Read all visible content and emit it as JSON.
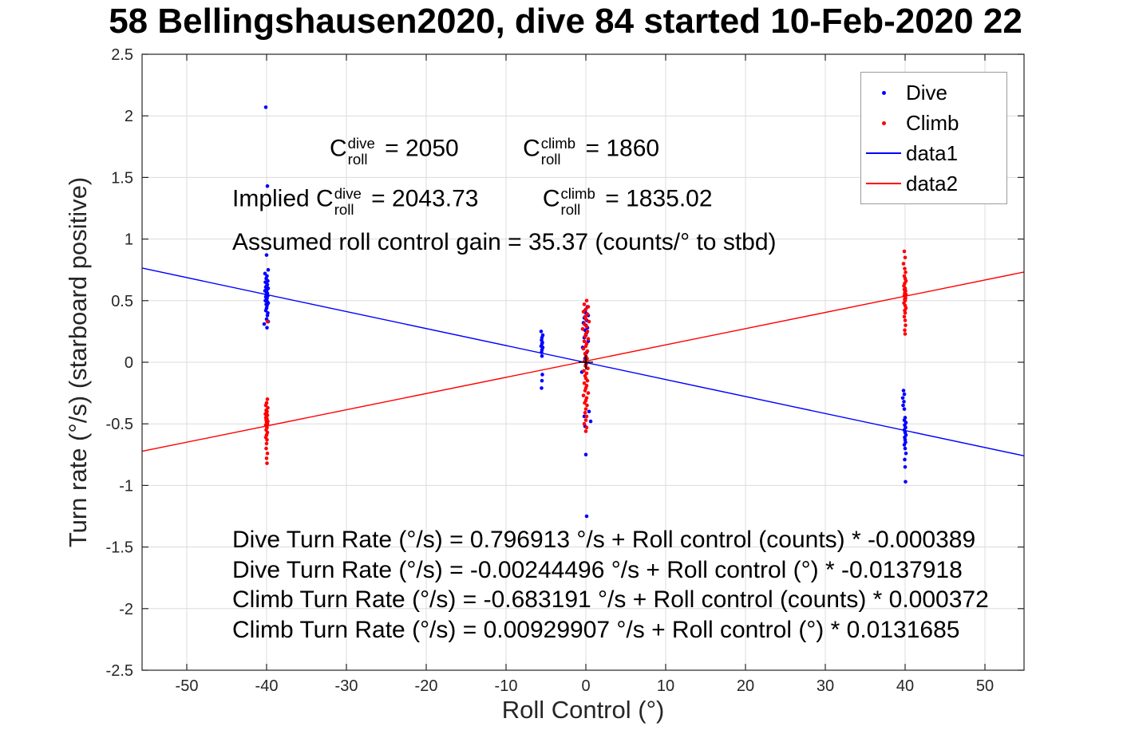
{
  "figure": {
    "background": "#ffffff"
  },
  "chart_data": {
    "type": "scatter",
    "title": "58 Bellingshausen2020, dive 84 started 10-Feb-2020 22",
    "xlabel": "Roll Control (°)",
    "ylabel": "Turn rate (°/s) (starboard positive)",
    "xlim": [
      -55.6,
      54.9
    ],
    "ylim": [
      -2.5,
      2.5
    ],
    "grid": true,
    "legend_position": "top-right",
    "axis_color": "#262626",
    "grid_color": "#dcdcdc",
    "xtick_values": [
      -50,
      -40,
      -30,
      -20,
      -10,
      0,
      10,
      20,
      30,
      40,
      50
    ],
    "xtick_labels": [
      "-50",
      "-40",
      "-30",
      "-20",
      "-10",
      "0",
      "10",
      "20",
      "30",
      "40",
      "50"
    ],
    "ytick_values": [
      -2.5,
      -2,
      -1.5,
      -1,
      -0.5,
      0,
      0.5,
      1,
      1.5,
      2,
      2.5
    ],
    "ytick_labels": [
      "-2.5",
      "-2",
      "-1.5",
      "-1",
      "-0.5",
      "0",
      "0.5",
      "1",
      "1.5",
      "2",
      "2.5"
    ],
    "origin_marker": {
      "x": 0,
      "y": 0,
      "color": "#000000"
    },
    "series": [
      {
        "name": "Dive",
        "type": "scatter",
        "color": "#0000ff",
        "points": [
          [
            -40.1,
            2.07
          ],
          [
            -39.9,
            1.43
          ],
          [
            -40.0,
            0.87
          ],
          [
            -39.8,
            0.75
          ],
          [
            -40.2,
            0.72
          ],
          [
            -39.95,
            0.7
          ],
          [
            -40.05,
            0.68
          ],
          [
            -39.85,
            0.66
          ],
          [
            -40.15,
            0.65
          ],
          [
            -39.9,
            0.63
          ],
          [
            -40.0,
            0.62
          ],
          [
            -40.1,
            0.61
          ],
          [
            -39.8,
            0.6
          ],
          [
            -39.95,
            0.59
          ],
          [
            -40.2,
            0.58
          ],
          [
            -40.0,
            0.57
          ],
          [
            -39.9,
            0.56
          ],
          [
            -40.05,
            0.55
          ],
          [
            -39.85,
            0.54
          ],
          [
            -40.1,
            0.53
          ],
          [
            -39.95,
            0.52
          ],
          [
            -40.0,
            0.51
          ],
          [
            -40.15,
            0.5
          ],
          [
            -39.9,
            0.49
          ],
          [
            -39.8,
            0.48
          ],
          [
            -40.05,
            0.47
          ],
          [
            -39.95,
            0.46
          ],
          [
            -40.0,
            0.44
          ],
          [
            -40.1,
            0.42
          ],
          [
            -39.85,
            0.4
          ],
          [
            -39.9,
            0.38
          ],
          [
            -40.0,
            0.35
          ],
          [
            -39.8,
            0.33
          ],
          [
            -40.3,
            0.31
          ],
          [
            -39.95,
            0.28
          ],
          [
            -5.6,
            0.25
          ],
          [
            -5.4,
            0.22
          ],
          [
            -5.5,
            0.2
          ],
          [
            -5.55,
            0.18
          ],
          [
            -5.45,
            0.16
          ],
          [
            -5.5,
            0.15
          ],
          [
            -5.6,
            0.13
          ],
          [
            -5.4,
            0.12
          ],
          [
            -5.5,
            0.1
          ],
          [
            -5.55,
            0.08
          ],
          [
            -5.5,
            0.05
          ],
          [
            -5.45,
            -0.1
          ],
          [
            -5.5,
            -0.15
          ],
          [
            -5.55,
            -0.21
          ],
          [
            0.2,
            0.45
          ],
          [
            -0.1,
            0.42
          ],
          [
            0.0,
            0.4
          ],
          [
            0.3,
            0.38
          ],
          [
            -0.2,
            0.36
          ],
          [
            0.1,
            0.34
          ],
          [
            -0.3,
            0.32
          ],
          [
            0.0,
            0.3
          ],
          [
            0.2,
            0.28
          ],
          [
            -0.1,
            0.26
          ],
          [
            0.1,
            0.24
          ],
          [
            0.0,
            0.22
          ],
          [
            -0.2,
            0.2
          ],
          [
            0.3,
            0.17
          ],
          [
            -0.4,
            0.12
          ],
          [
            0.1,
            0.08
          ],
          [
            -0.1,
            0.03
          ],
          [
            0.0,
            -0.02
          ],
          [
            -0.5,
            -0.08
          ],
          [
            0.4,
            -0.4
          ],
          [
            -0.2,
            -0.44
          ],
          [
            0.6,
            -0.48
          ],
          [
            -0.1,
            -0.52
          ],
          [
            0.0,
            -0.75
          ],
          [
            0.1,
            -1.25
          ],
          [
            39.8,
            -0.23
          ],
          [
            39.9,
            -0.26
          ],
          [
            39.7,
            -0.29
          ],
          [
            39.85,
            -0.32
          ],
          [
            39.75,
            -0.35
          ],
          [
            39.9,
            -0.38
          ],
          [
            40.0,
            -0.45
          ],
          [
            39.9,
            -0.47
          ],
          [
            40.1,
            -0.49
          ],
          [
            39.95,
            -0.51
          ],
          [
            40.05,
            -0.53
          ],
          [
            39.9,
            -0.55
          ],
          [
            40.0,
            -0.57
          ],
          [
            40.1,
            -0.59
          ],
          [
            39.95,
            -0.61
          ],
          [
            40.0,
            -0.63
          ],
          [
            40.05,
            -0.65
          ],
          [
            39.9,
            -0.67
          ],
          [
            40.0,
            -0.7
          ],
          [
            40.1,
            -0.74
          ],
          [
            39.95,
            -0.79
          ],
          [
            40.0,
            -0.85
          ],
          [
            40.05,
            -0.97
          ]
        ]
      },
      {
        "name": "Climb",
        "type": "scatter",
        "color": "#ff0000",
        "points": [
          [
            -39.9,
            0.33
          ],
          [
            -39.9,
            -0.3
          ],
          [
            -40.0,
            -0.33
          ],
          [
            -40.1,
            -0.35
          ],
          [
            -39.85,
            -0.37
          ],
          [
            -40.05,
            -0.39
          ],
          [
            -39.95,
            -0.4
          ],
          [
            -40.0,
            -0.41
          ],
          [
            -40.15,
            -0.42
          ],
          [
            -39.9,
            -0.43
          ],
          [
            -40.0,
            -0.44
          ],
          [
            -40.1,
            -0.45
          ],
          [
            -39.95,
            -0.46
          ],
          [
            -40.05,
            -0.47
          ],
          [
            -39.85,
            -0.48
          ],
          [
            -40.0,
            -0.49
          ],
          [
            -39.9,
            -0.5
          ],
          [
            -40.1,
            -0.51
          ],
          [
            -40.0,
            -0.52
          ],
          [
            -39.95,
            -0.53
          ],
          [
            -40.05,
            -0.55
          ],
          [
            -39.9,
            -0.57
          ],
          [
            -40.0,
            -0.59
          ],
          [
            -40.1,
            -0.61
          ],
          [
            -39.95,
            -0.63
          ],
          [
            -40.0,
            -0.66
          ],
          [
            -40.05,
            -0.7
          ],
          [
            -39.9,
            -0.74
          ],
          [
            -40.0,
            -0.78
          ],
          [
            -39.95,
            -0.82
          ],
          [
            0.1,
            0.5
          ],
          [
            -0.2,
            0.47
          ],
          [
            0.3,
            0.45
          ],
          [
            0.0,
            0.43
          ],
          [
            -0.3,
            0.41
          ],
          [
            0.2,
            0.39
          ],
          [
            -0.1,
            0.37
          ],
          [
            0.0,
            0.35
          ],
          [
            0.4,
            0.33
          ],
          [
            -0.2,
            0.31
          ],
          [
            0.1,
            0.29
          ],
          [
            -0.4,
            0.27
          ],
          [
            0.2,
            0.25
          ],
          [
            0.0,
            0.23
          ],
          [
            -0.1,
            0.21
          ],
          [
            0.3,
            0.19
          ],
          [
            -0.2,
            0.17
          ],
          [
            0.1,
            0.15
          ],
          [
            0.0,
            0.13
          ],
          [
            -0.3,
            0.11
          ],
          [
            0.2,
            0.09
          ],
          [
            -0.1,
            0.07
          ],
          [
            0.0,
            0.05
          ],
          [
            0.15,
            0.03
          ],
          [
            -0.15,
            0.01
          ],
          [
            0.05,
            -0.01
          ],
          [
            -0.05,
            -0.03
          ],
          [
            0.25,
            -0.05
          ],
          [
            -0.25,
            -0.07
          ],
          [
            0.1,
            -0.09
          ],
          [
            -0.1,
            -0.11
          ],
          [
            0.0,
            -0.13
          ],
          [
            0.2,
            -0.15
          ],
          [
            -0.2,
            -0.17
          ],
          [
            0.1,
            -0.19
          ],
          [
            0.0,
            -0.21
          ],
          [
            -0.1,
            -0.23
          ],
          [
            0.3,
            -0.25
          ],
          [
            -0.3,
            -0.27
          ],
          [
            0.1,
            -0.29
          ],
          [
            0.0,
            -0.31
          ],
          [
            -0.15,
            -0.33
          ],
          [
            0.15,
            -0.35
          ],
          [
            0.0,
            -0.38
          ],
          [
            -0.1,
            -0.41
          ],
          [
            0.1,
            -0.44
          ],
          [
            0.0,
            -0.47
          ],
          [
            -0.2,
            -0.5
          ],
          [
            0.1,
            -0.53
          ],
          [
            0.0,
            -0.56
          ],
          [
            39.9,
            0.9
          ],
          [
            40.0,
            0.85
          ],
          [
            39.8,
            0.8
          ],
          [
            39.95,
            0.76
          ],
          [
            40.05,
            0.73
          ],
          [
            39.9,
            0.7
          ],
          [
            40.0,
            0.68
          ],
          [
            40.1,
            0.66
          ],
          [
            39.95,
            0.64
          ],
          [
            39.85,
            0.62
          ],
          [
            40.0,
            0.6
          ],
          [
            39.9,
            0.59
          ],
          [
            40.05,
            0.58
          ],
          [
            40.0,
            0.57
          ],
          [
            39.95,
            0.56
          ],
          [
            40.1,
            0.55
          ],
          [
            39.9,
            0.54
          ],
          [
            40.0,
            0.53
          ],
          [
            40.05,
            0.52
          ],
          [
            39.95,
            0.51
          ],
          [
            40.0,
            0.5
          ],
          [
            39.85,
            0.48
          ],
          [
            40.0,
            0.46
          ],
          [
            40.1,
            0.44
          ],
          [
            39.95,
            0.42
          ],
          [
            40.0,
            0.4
          ],
          [
            39.9,
            0.37
          ],
          [
            40.0,
            0.34
          ],
          [
            40.05,
            0.3
          ],
          [
            39.95,
            0.26
          ],
          [
            40.0,
            0.23
          ]
        ]
      },
      {
        "name": "data1",
        "type": "line",
        "color": "#0000ff",
        "slope": -0.0137918,
        "intercept": -0.00244496
      },
      {
        "name": "data2",
        "type": "line",
        "color": "#ff0000",
        "slope": 0.0131685,
        "intercept": 0.00929907
      }
    ]
  },
  "legend": {
    "items": [
      {
        "label": "Dive",
        "marker": "dot",
        "color": "#0000ff"
      },
      {
        "label": "Climb",
        "marker": "dot",
        "color": "#ff0000"
      },
      {
        "label": "data1",
        "marker": "line",
        "color": "#0000ff"
      },
      {
        "label": "data2",
        "marker": "line",
        "color": "#ff0000"
      }
    ]
  },
  "annotations": {
    "row1": {
      "c_base": "C",
      "dive_sup": "dive",
      "roll_sub": "roll",
      "dive_eq": " = 2050",
      "climb_sup": "climb",
      "climb_eq": " = 1860"
    },
    "row2": {
      "prefix": "Implied ",
      "c_base": "C",
      "dive_sup": "dive",
      "roll_sub": "roll",
      "dive_eq": " = 2043.73",
      "climb_sup": "climb",
      "climb_eq": " = 1835.02"
    },
    "row3": "Assumed roll control gain = 35.37 (counts/° to stbd)",
    "eq_lines": [
      "Dive Turn Rate (°/s) = 0.796913 °/s + Roll control (counts) * -0.000389",
      "Dive Turn Rate (°/s) = -0.00244496 °/s + Roll control (°) * -0.0137918",
      "Climb Turn Rate (°/s) = -0.683191 °/s + Roll control (counts) * 0.000372",
      "Climb Turn Rate (°/s) = 0.00929907 °/s + Roll control (°) * 0.0131685"
    ]
  }
}
